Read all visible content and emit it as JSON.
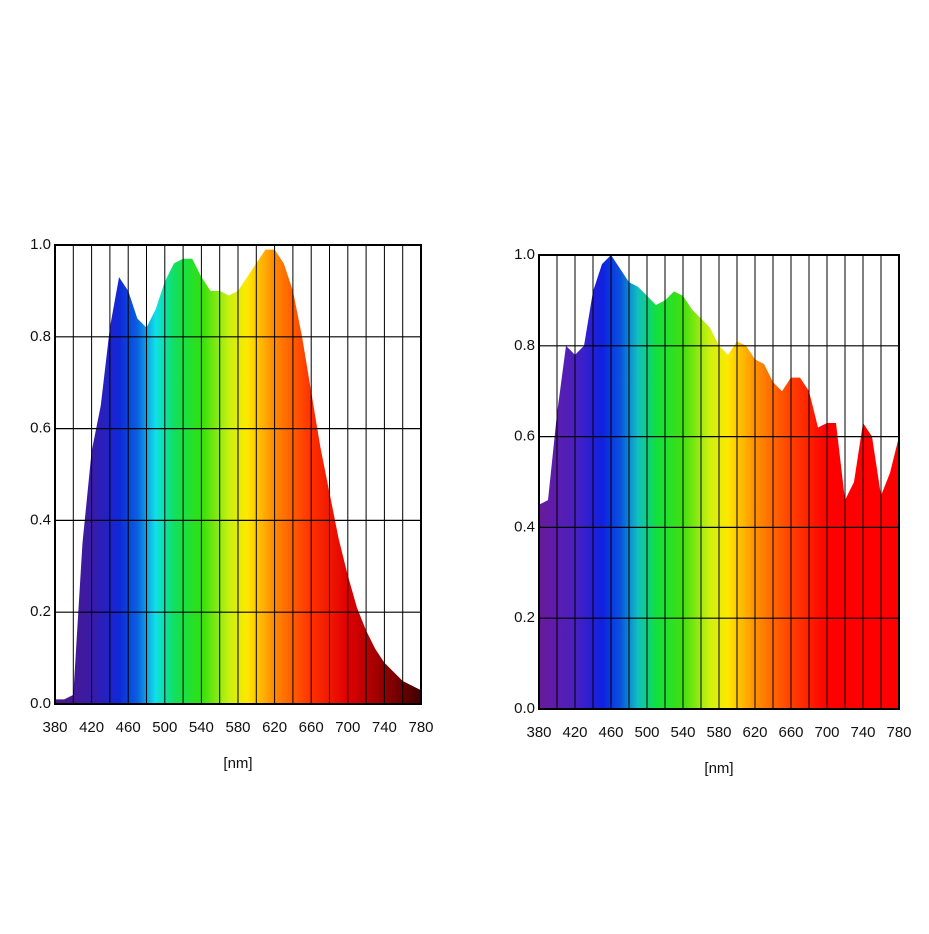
{
  "chart_data": [
    {
      "type": "area",
      "xlabel": "[nm]",
      "x": [
        380,
        390,
        400,
        410,
        420,
        430,
        440,
        450,
        460,
        470,
        480,
        490,
        500,
        510,
        520,
        530,
        540,
        550,
        560,
        570,
        580,
        590,
        600,
        610,
        620,
        630,
        640,
        650,
        660,
        670,
        680,
        690,
        700,
        710,
        720,
        730,
        740,
        750,
        760,
        770,
        780
      ],
      "series": [
        {
          "values": [
            0.01,
            0.01,
            0.02,
            0.35,
            0.55,
            0.65,
            0.82,
            0.93,
            0.9,
            0.84,
            0.82,
            0.86,
            0.92,
            0.96,
            0.97,
            0.97,
            0.93,
            0.9,
            0.9,
            0.89,
            0.9,
            0.93,
            0.96,
            0.99,
            0.99,
            0.96,
            0.9,
            0.8,
            0.68,
            0.56,
            0.46,
            0.36,
            0.28,
            0.21,
            0.16,
            0.12,
            0.09,
            0.07,
            0.05,
            0.04,
            0.03
          ]
        }
      ],
      "xlim": [
        380,
        780
      ],
      "ylim": [
        0,
        1
      ],
      "xticks": [
        380,
        420,
        460,
        500,
        540,
        580,
        620,
        660,
        700,
        740,
        780
      ],
      "minor_xticks": [
        400,
        440,
        480,
        520,
        560,
        600,
        640,
        680,
        720,
        760
      ],
      "yticks": [
        {
          "value": 0,
          "label": "0.0"
        },
        0.2,
        0.4,
        0.6,
        0.8,
        {
          "value": 1,
          "label": "1.0"
        }
      ],
      "grid": true,
      "fill_stops": [
        [
          380,
          "#4a1a80"
        ],
        [
          420,
          "#3a1aa8"
        ],
        [
          450,
          "#1028d8"
        ],
        [
          470,
          "#0a60e0"
        ],
        [
          490,
          "#10e0e8"
        ],
        [
          510,
          "#10e060"
        ],
        [
          540,
          "#30e010"
        ],
        [
          570,
          "#c8f010"
        ],
        [
          590,
          "#ffe800"
        ],
        [
          620,
          "#ff8800"
        ],
        [
          660,
          "#ff3000"
        ],
        [
          700,
          "#e00000"
        ],
        [
          740,
          "#900000"
        ],
        [
          780,
          "#400000"
        ]
      ]
    },
    {
      "type": "area",
      "xlabel": "[nm]",
      "x": [
        380,
        390,
        400,
        410,
        420,
        430,
        440,
        450,
        460,
        470,
        480,
        490,
        500,
        510,
        520,
        530,
        540,
        550,
        560,
        570,
        580,
        590,
        600,
        610,
        620,
        630,
        640,
        650,
        660,
        670,
        680,
        690,
        700,
        710,
        720,
        730,
        740,
        750,
        760,
        770,
        780
      ],
      "series": [
        {
          "values": [
            0.45,
            0.46,
            0.65,
            0.8,
            0.78,
            0.8,
            0.92,
            0.98,
            1.0,
            0.97,
            0.94,
            0.93,
            0.91,
            0.89,
            0.9,
            0.92,
            0.91,
            0.88,
            0.86,
            0.84,
            0.8,
            0.78,
            0.81,
            0.8,
            0.77,
            0.76,
            0.72,
            0.7,
            0.73,
            0.73,
            0.7,
            0.62,
            0.63,
            0.63,
            0.46,
            0.5,
            0.63,
            0.6,
            0.47,
            0.52,
            0.6
          ]
        }
      ],
      "xlim": [
        380,
        780
      ],
      "ylim": [
        0,
        1
      ],
      "xticks": [
        380,
        420,
        460,
        500,
        540,
        580,
        620,
        660,
        700,
        740,
        780
      ],
      "minor_xticks": [
        400,
        440,
        480,
        520,
        560,
        600,
        640,
        680,
        720,
        760
      ],
      "yticks": [
        {
          "value": 0,
          "label": "0.0"
        },
        0.2,
        0.4,
        0.6,
        0.8,
        {
          "value": 1,
          "label": "1.0"
        }
      ],
      "grid": true,
      "fill_stops": [
        [
          380,
          "#6a1a9a"
        ],
        [
          420,
          "#4a20c0"
        ],
        [
          450,
          "#1020e0"
        ],
        [
          470,
          "#0a50e0"
        ],
        [
          490,
          "#10c0c0"
        ],
        [
          510,
          "#10e040"
        ],
        [
          540,
          "#40e010"
        ],
        [
          570,
          "#d0f010"
        ],
        [
          590,
          "#ffe800"
        ],
        [
          620,
          "#ff9000"
        ],
        [
          660,
          "#ff4000"
        ],
        [
          700,
          "#ff0000"
        ],
        [
          780,
          "#ff0000"
        ]
      ]
    }
  ]
}
